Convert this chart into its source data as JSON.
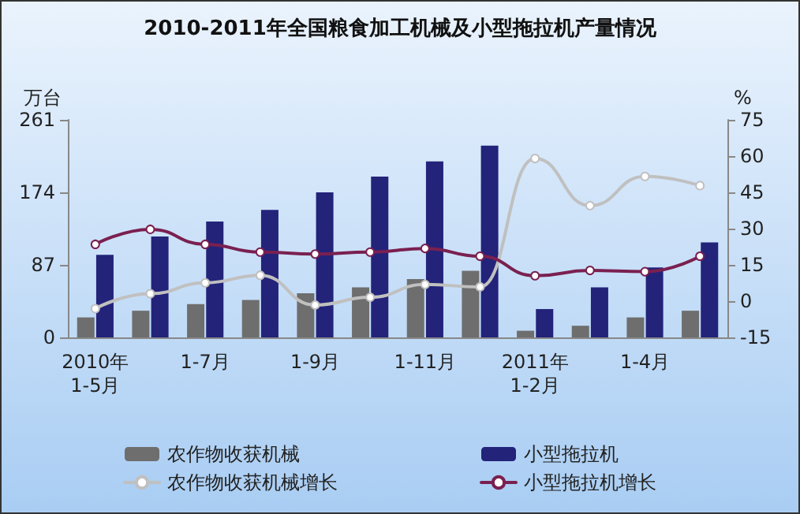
{
  "chart_data": {
    "type": "bar",
    "title": "2010-2011年全国粮食加工机械及小型拖拉机产量情况",
    "ylabel": "万台",
    "y2label": "%",
    "categories": [
      "2010年\n1-5月",
      null,
      "1-7月",
      null,
      "1-9月",
      null,
      "1-11月",
      null,
      "2011年\n1-2月",
      null,
      "1-4月",
      null
    ],
    "series": [
      {
        "name": "农作物收获机械",
        "color": "#6e6e6e",
        "values": [
          24,
          32,
          40,
          45,
          53,
          60,
          70,
          80,
          8,
          14,
          24,
          32
        ]
      },
      {
        "name": "小型拖拉机",
        "color": "#23237a",
        "values": [
          99,
          121,
          139,
          153,
          174,
          193,
          211,
          230,
          34,
          60,
          84,
          114
        ]
      },
      {
        "name": "农作物收获机械增长",
        "type": "line",
        "axis": "y2",
        "color": "#c0c0c0",
        "values": [
          -3.1,
          3.1,
          7.6,
          10.7,
          -1.6,
          1.6,
          6.9,
          5.9,
          59,
          39.5,
          51.6,
          47.8
        ]
      },
      {
        "name": "小型拖拉机增长",
        "type": "line",
        "axis": "y2",
        "color": "#7a2050",
        "values": [
          23.5,
          29.7,
          23.5,
          20.3,
          19.5,
          20.3,
          21.8,
          18.6,
          10.5,
          12.7,
          12.2,
          18.6
        ]
      }
    ],
    "ylim": [
      0,
      261
    ],
    "yticks": [
      0,
      87,
      174,
      261
    ],
    "y2lim": [
      -15,
      75
    ],
    "y2ticks": [
      -15,
      0,
      15,
      30,
      45,
      60,
      75
    ],
    "legend": "bottom",
    "marker": "circle",
    "grid": false
  }
}
